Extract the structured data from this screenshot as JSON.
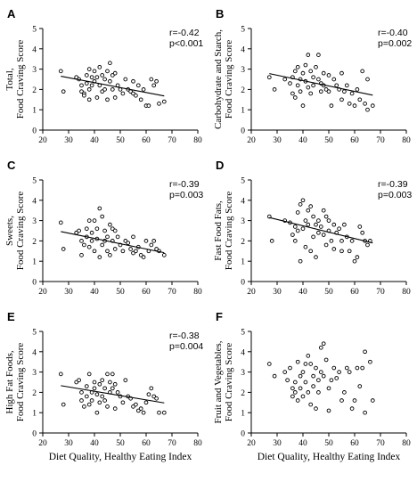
{
  "x_axis_label": "Diet Quality, Healthy Eating Index",
  "chart_data": [
    {
      "panel": "A",
      "type": "scatter",
      "ylabel": [
        "Total,",
        "Food Craving Score"
      ],
      "xlim": [
        20,
        80
      ],
      "ylim": [
        0,
        5
      ],
      "x_ticks": [
        20,
        30,
        40,
        50,
        60,
        70,
        80
      ],
      "y_ticks": [
        0,
        1,
        2,
        3,
        4,
        5
      ],
      "stats": [
        "r=-0.42",
        "p<0.001"
      ],
      "trend": {
        "x": [
          27,
          67
        ],
        "y": [
          2.65,
          1.68
        ]
      },
      "points": [
        [
          27,
          2.9
        ],
        [
          28,
          1.9
        ],
        [
          33,
          2.6
        ],
        [
          34,
          2.5
        ],
        [
          35,
          2.2
        ],
        [
          35,
          1.9
        ],
        [
          36,
          1.8
        ],
        [
          36,
          1.7
        ],
        [
          37,
          2.7
        ],
        [
          37,
          2.3
        ],
        [
          38,
          3.0
        ],
        [
          38,
          2.0
        ],
        [
          38,
          1.5
        ],
        [
          39,
          2.6
        ],
        [
          39,
          2.2
        ],
        [
          40,
          2.9
        ],
        [
          40,
          2.4
        ],
        [
          41,
          2.6
        ],
        [
          41,
          1.6
        ],
        [
          42,
          3.1
        ],
        [
          42,
          2.2
        ],
        [
          43,
          2.7
        ],
        [
          43,
          1.9
        ],
        [
          44,
          2.5
        ],
        [
          44,
          2.0
        ],
        [
          45,
          2.9
        ],
        [
          45,
          1.5
        ],
        [
          46,
          3.3
        ],
        [
          46,
          2.4
        ],
        [
          47,
          2.7
        ],
        [
          47,
          2.0
        ],
        [
          48,
          2.8
        ],
        [
          48,
          1.6
        ],
        [
          49,
          2.2
        ],
        [
          50,
          2.0
        ],
        [
          51,
          1.8
        ],
        [
          52,
          2.5
        ],
        [
          53,
          2.0
        ],
        [
          54,
          1.9
        ],
        [
          55,
          2.4
        ],
        [
          55,
          1.8
        ],
        [
          56,
          1.7
        ],
        [
          57,
          2.2
        ],
        [
          58,
          1.5
        ],
        [
          59,
          2.0
        ],
        [
          60,
          1.2
        ],
        [
          61,
          1.2
        ],
        [
          62,
          2.5
        ],
        [
          63,
          2.2
        ],
        [
          64,
          2.4
        ],
        [
          65,
          1.3
        ],
        [
          67,
          1.4
        ]
      ]
    },
    {
      "panel": "B",
      "type": "scatter",
      "ylabel": [
        "Carbohydrate and Starch,",
        "Food Craving Score"
      ],
      "xlim": [
        20,
        80
      ],
      "ylim": [
        0,
        5
      ],
      "x_ticks": [
        20,
        30,
        40,
        50,
        60,
        70,
        80
      ],
      "y_ticks": [
        0,
        1,
        2,
        3,
        4,
        5
      ],
      "stats": [
        "r=-0.40",
        "p=0.002"
      ],
      "trend": {
        "x": [
          27,
          67
        ],
        "y": [
          2.78,
          1.72
        ]
      },
      "points": [
        [
          27,
          2.6
        ],
        [
          29,
          2.0
        ],
        [
          33,
          2.5
        ],
        [
          35,
          2.3
        ],
        [
          36,
          1.8
        ],
        [
          36,
          2.6
        ],
        [
          37,
          1.6
        ],
        [
          37,
          2.9
        ],
        [
          38,
          3.1
        ],
        [
          38,
          2.2
        ],
        [
          39,
          2.5
        ],
        [
          39,
          1.9
        ],
        [
          40,
          2.8
        ],
        [
          40,
          1.2
        ],
        [
          41,
          3.2
        ],
        [
          41,
          2.4
        ],
        [
          42,
          3.7
        ],
        [
          42,
          2.1
        ],
        [
          43,
          2.9
        ],
        [
          43,
          1.8
        ],
        [
          44,
          2.6
        ],
        [
          44,
          2.2
        ],
        [
          45,
          3.1
        ],
        [
          46,
          2.5
        ],
        [
          46,
          3.7
        ],
        [
          47,
          2.3
        ],
        [
          47,
          1.9
        ],
        [
          48,
          2.8
        ],
        [
          48,
          2.2
        ],
        [
          49,
          2.0
        ],
        [
          50,
          1.9
        ],
        [
          50,
          2.7
        ],
        [
          51,
          1.2
        ],
        [
          52,
          2.5
        ],
        [
          53,
          2.2
        ],
        [
          54,
          2.0
        ],
        [
          55,
          1.5
        ],
        [
          55,
          2.8
        ],
        [
          56,
          1.9
        ],
        [
          57,
          2.2
        ],
        [
          58,
          1.3
        ],
        [
          59,
          1.8
        ],
        [
          60,
          1.2
        ],
        [
          61,
          2.0
        ],
        [
          62,
          1.5
        ],
        [
          63,
          2.9
        ],
        [
          64,
          1.3
        ],
        [
          65,
          2.5
        ],
        [
          65,
          1.0
        ],
        [
          67,
          1.2
        ]
      ]
    },
    {
      "panel": "C",
      "type": "scatter",
      "ylabel": [
        "Sweets,",
        "Food Craving Score"
      ],
      "xlim": [
        20,
        80
      ],
      "ylim": [
        0,
        5
      ],
      "x_ticks": [
        20,
        30,
        40,
        50,
        60,
        70,
        80
      ],
      "y_ticks": [
        0,
        1,
        2,
        3,
        4,
        5
      ],
      "stats": [
        "r=-0.39",
        "p=0.003"
      ],
      "trend": {
        "x": [
          27,
          67
        ],
        "y": [
          2.46,
          1.42
        ]
      },
      "points": [
        [
          27,
          2.9
        ],
        [
          28,
          1.6
        ],
        [
          33,
          2.4
        ],
        [
          34,
          2.5
        ],
        [
          35,
          2.0
        ],
        [
          35,
          1.3
        ],
        [
          36,
          1.8
        ],
        [
          37,
          2.6
        ],
        [
          37,
          2.2
        ],
        [
          38,
          3.0
        ],
        [
          38,
          1.7
        ],
        [
          39,
          2.4
        ],
        [
          39,
          2.0
        ],
        [
          40,
          3.0
        ],
        [
          40,
          1.5
        ],
        [
          41,
          2.6
        ],
        [
          41,
          2.1
        ],
        [
          42,
          3.6
        ],
        [
          42,
          1.2
        ],
        [
          43,
          3.2
        ],
        [
          43,
          1.8
        ],
        [
          44,
          2.5
        ],
        [
          44,
          2.0
        ],
        [
          45,
          2.2
        ],
        [
          45,
          1.5
        ],
        [
          46,
          2.8
        ],
        [
          46,
          1.3
        ],
        [
          47,
          2.6
        ],
        [
          47,
          2.0
        ],
        [
          48,
          2.5
        ],
        [
          48,
          1.6
        ],
        [
          49,
          2.2
        ],
        [
          50,
          1.8
        ],
        [
          51,
          1.5
        ],
        [
          52,
          2.0
        ],
        [
          53,
          1.9
        ],
        [
          54,
          1.6
        ],
        [
          55,
          2.2
        ],
        [
          55,
          1.4
        ],
        [
          56,
          1.5
        ],
        [
          57,
          1.7
        ],
        [
          58,
          1.3
        ],
        [
          59,
          1.2
        ],
        [
          60,
          2.0
        ],
        [
          61,
          1.5
        ],
        [
          62,
          1.8
        ],
        [
          63,
          2.0
        ],
        [
          64,
          1.6
        ],
        [
          65,
          1.5
        ],
        [
          67,
          1.3
        ]
      ]
    },
    {
      "panel": "D",
      "type": "scatter",
      "ylabel": [
        "Fast Food Fats,",
        "Food Craving Score"
      ],
      "xlim": [
        20,
        80
      ],
      "ylim": [
        0,
        5
      ],
      "x_ticks": [
        20,
        30,
        40,
        50,
        60,
        70,
        80
      ],
      "y_ticks": [
        0,
        1,
        2,
        3,
        4,
        5
      ],
      "stats": [
        "r=-0.39",
        "p=0.003"
      ],
      "trend": {
        "x": [
          27,
          67
        ],
        "y": [
          3.15,
          1.9
        ]
      },
      "points": [
        [
          27,
          3.2
        ],
        [
          28,
          2.0
        ],
        [
          33,
          3.0
        ],
        [
          35,
          2.9
        ],
        [
          36,
          2.3
        ],
        [
          37,
          2.7
        ],
        [
          37,
          2.0
        ],
        [
          38,
          3.4
        ],
        [
          38,
          2.5
        ],
        [
          39,
          3.8
        ],
        [
          39,
          1.0
        ],
        [
          40,
          4.0
        ],
        [
          40,
          2.6
        ],
        [
          41,
          3.0
        ],
        [
          41,
          1.7
        ],
        [
          42,
          3.5
        ],
        [
          42,
          2.8
        ],
        [
          43,
          3.7
        ],
        [
          43,
          1.5
        ],
        [
          44,
          3.2
        ],
        [
          44,
          2.2
        ],
        [
          45,
          2.8
        ],
        [
          45,
          1.2
        ],
        [
          46,
          3.0
        ],
        [
          46,
          2.4
        ],
        [
          47,
          2.7
        ],
        [
          48,
          3.5
        ],
        [
          48,
          2.3
        ],
        [
          49,
          3.2
        ],
        [
          49,
          1.8
        ],
        [
          50,
          3.0
        ],
        [
          50,
          2.5
        ],
        [
          51,
          2.0
        ],
        [
          52,
          2.8
        ],
        [
          52,
          1.6
        ],
        [
          53,
          2.4
        ],
        [
          54,
          2.6
        ],
        [
          55,
          2.0
        ],
        [
          55,
          1.5
        ],
        [
          56,
          2.8
        ],
        [
          57,
          2.2
        ],
        [
          58,
          1.5
        ],
        [
          59,
          2.0
        ],
        [
          60,
          1.0
        ],
        [
          61,
          1.2
        ],
        [
          62,
          2.7
        ],
        [
          63,
          2.4
        ],
        [
          64,
          2.0
        ],
        [
          65,
          1.8
        ],
        [
          66,
          2.0
        ]
      ]
    },
    {
      "panel": "E",
      "type": "scatter",
      "ylabel": [
        "High Fat Foods,",
        "Food Craving Score"
      ],
      "xlim": [
        20,
        80
      ],
      "ylim": [
        0,
        5
      ],
      "x_ticks": [
        20,
        30,
        40,
        50,
        60,
        70,
        80
      ],
      "y_ticks": [
        0,
        1,
        2,
        3,
        4,
        5
      ],
      "stats": [
        "r=-0.38",
        "p=0.004"
      ],
      "trend": {
        "x": [
          27,
          67
        ],
        "y": [
          2.33,
          1.48
        ]
      },
      "points": [
        [
          27,
          2.9
        ],
        [
          28,
          1.4
        ],
        [
          33,
          2.5
        ],
        [
          34,
          2.6
        ],
        [
          35,
          2.0
        ],
        [
          35,
          1.6
        ],
        [
          36,
          1.3
        ],
        [
          37,
          2.3
        ],
        [
          37,
          1.8
        ],
        [
          38,
          2.9
        ],
        [
          38,
          1.4
        ],
        [
          39,
          2.0
        ],
        [
          39,
          1.6
        ],
        [
          40,
          2.5
        ],
        [
          40,
          2.2
        ],
        [
          41,
          1.9
        ],
        [
          41,
          1.0
        ],
        [
          42,
          2.4
        ],
        [
          42,
          1.5
        ],
        [
          43,
          2.6
        ],
        [
          43,
          1.8
        ],
        [
          44,
          2.2
        ],
        [
          44,
          1.6
        ],
        [
          45,
          2.9
        ],
        [
          45,
          1.3
        ],
        [
          46,
          2.5
        ],
        [
          46,
          2.0
        ],
        [
          47,
          2.9
        ],
        [
          47,
          2.2
        ],
        [
          48,
          2.4
        ],
        [
          48,
          1.2
        ],
        [
          49,
          2.0
        ],
        [
          50,
          1.8
        ],
        [
          51,
          1.5
        ],
        [
          52,
          2.6
        ],
        [
          53,
          1.8
        ],
        [
          54,
          1.7
        ],
        [
          55,
          1.3
        ],
        [
          56,
          1.4
        ],
        [
          57,
          1.1
        ],
        [
          58,
          1.2
        ],
        [
          59,
          1.0
        ],
        [
          60,
          1.5
        ],
        [
          61,
          1.9
        ],
        [
          62,
          2.2
        ],
        [
          63,
          1.8
        ],
        [
          64,
          1.7
        ],
        [
          65,
          1.0
        ],
        [
          67,
          1.0
        ]
      ]
    },
    {
      "panel": "F",
      "type": "scatter",
      "ylabel": [
        "Fruit and Vegetables,",
        "Food Craving Score"
      ],
      "xlim": [
        20,
        80
      ],
      "ylim": [
        0,
        5
      ],
      "x_ticks": [
        20,
        30,
        40,
        50,
        60,
        70,
        80
      ],
      "y_ticks": [
        0,
        1,
        2,
        3,
        4,
        5
      ],
      "stats": [],
      "trend": null,
      "points": [
        [
          27,
          3.4
        ],
        [
          29,
          2.8
        ],
        [
          33,
          3.0
        ],
        [
          34,
          2.6
        ],
        [
          35,
          3.2
        ],
        [
          36,
          2.2
        ],
        [
          36,
          1.8
        ],
        [
          37,
          2.5
        ],
        [
          37,
          2.0
        ],
        [
          38,
          3.5
        ],
        [
          38,
          1.6
        ],
        [
          39,
          2.8
        ],
        [
          39,
          2.2
        ],
        [
          40,
          3.0
        ],
        [
          40,
          1.8
        ],
        [
          41,
          3.4
        ],
        [
          41,
          2.5
        ],
        [
          42,
          3.8
        ],
        [
          42,
          2.0
        ],
        [
          43,
          3.4
        ],
        [
          43,
          1.4
        ],
        [
          44,
          2.8
        ],
        [
          44,
          2.3
        ],
        [
          45,
          3.2
        ],
        [
          45,
          1.2
        ],
        [
          46,
          2.6
        ],
        [
          46,
          2.0
        ],
        [
          47,
          3.0
        ],
        [
          47,
          4.2
        ],
        [
          48,
          2.8
        ],
        [
          48,
          4.4
        ],
        [
          49,
          3.6
        ],
        [
          50,
          2.2
        ],
        [
          50,
          1.1
        ],
        [
          51,
          2.6
        ],
        [
          52,
          3.2
        ],
        [
          53,
          2.7
        ],
        [
          54,
          3.0
        ],
        [
          55,
          1.6
        ],
        [
          56,
          2.0
        ],
        [
          57,
          3.2
        ],
        [
          58,
          3.0
        ],
        [
          59,
          1.2
        ],
        [
          60,
          1.6
        ],
        [
          61,
          3.2
        ],
        [
          62,
          2.3
        ],
        [
          63,
          3.2
        ],
        [
          64,
          4.0
        ],
        [
          64,
          1.0
        ],
        [
          66,
          3.5
        ],
        [
          67,
          1.6
        ]
      ]
    }
  ]
}
